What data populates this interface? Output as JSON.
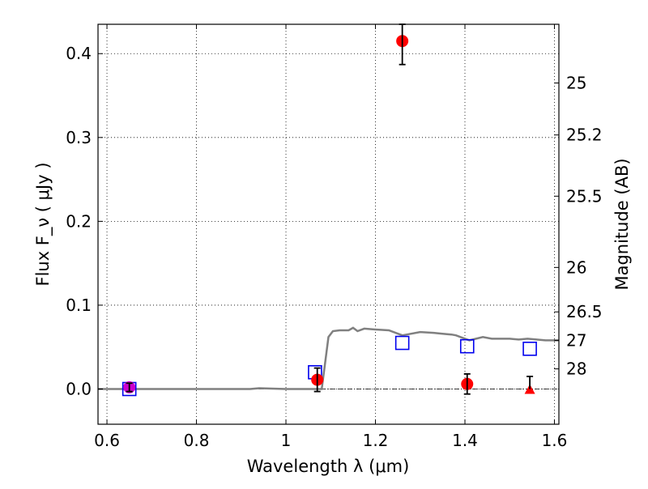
{
  "chart_data": {
    "type": "scatter",
    "title": "",
    "xlabel": "Wavelength  λ (μm)",
    "ylabel": "Flux  F_ν  ( μJy )",
    "ylabel_right": "Magnitude (AB)",
    "xlim": [
      0.58,
      1.61
    ],
    "ylim": [
      -0.042,
      0.435
    ],
    "grid": true,
    "x_ticks": [
      {
        "value": 0.6,
        "label": "0.6"
      },
      {
        "value": 0.8,
        "label": "0.8"
      },
      {
        "value": 1.0,
        "label": "1"
      },
      {
        "value": 1.2,
        "label": "1.2"
      },
      {
        "value": 1.4,
        "label": "1.4"
      },
      {
        "value": 1.6,
        "label": "1.6"
      }
    ],
    "y_ticks": [
      {
        "value": 0.0,
        "label": "0.0"
      },
      {
        "value": 0.1,
        "label": "0.1"
      },
      {
        "value": 0.2,
        "label": "0.2"
      },
      {
        "value": 0.3,
        "label": "0.3"
      },
      {
        "value": 0.4,
        "label": "0.4"
      }
    ],
    "right_ticks": [
      {
        "flux": 0.365,
        "label": "25"
      },
      {
        "flux": 0.303,
        "label": "25.2"
      },
      {
        "flux": 0.23,
        "label": "25.5"
      },
      {
        "flux": 0.145,
        "label": "26"
      },
      {
        "flux": 0.092,
        "label": "26.5"
      },
      {
        "flux": 0.058,
        "label": "27"
      },
      {
        "flux": 0.024,
        "label": "28"
      }
    ],
    "series": [
      {
        "kind": "model",
        "color": "#808080",
        "x": [
          0.58,
          0.6,
          0.7,
          0.8,
          0.9,
          0.92,
          0.94,
          0.97,
          1.0,
          1.04,
          1.08,
          1.095,
          1.105,
          1.12,
          1.14,
          1.15,
          1.16,
          1.175,
          1.2,
          1.23,
          1.26,
          1.28,
          1.3,
          1.33,
          1.35,
          1.37,
          1.38,
          1.39,
          1.41,
          1.44,
          1.46,
          1.48,
          1.5,
          1.52,
          1.54,
          1.56,
          1.58,
          1.6,
          1.61
        ],
        "y": [
          0.0,
          0.0,
          0.0,
          0.0,
          0.0,
          0.0,
          0.001,
          0.0005,
          0.0,
          0.0,
          0.0,
          0.062,
          0.069,
          0.07,
          0.07,
          0.073,
          0.069,
          0.072,
          0.071,
          0.07,
          0.064,
          0.066,
          0.068,
          0.067,
          0.066,
          0.065,
          0.064,
          0.062,
          0.058,
          0.062,
          0.06,
          0.06,
          0.06,
          0.059,
          0.06,
          0.059,
          0.058,
          0.058,
          0.058
        ]
      },
      {
        "kind": "synthetic-photometry",
        "marker": "open-square",
        "color": "#0000ee",
        "x": [
          0.65,
          1.065,
          1.26,
          1.405,
          1.545
        ],
        "y": [
          0.0,
          0.02,
          0.055,
          0.051,
          0.048
        ]
      },
      {
        "kind": "observed-photometry",
        "marker": "filled-circle",
        "color": "#ff0000",
        "x": [
          0.65,
          1.07,
          1.26,
          1.405
        ],
        "y": [
          0.002,
          0.011,
          0.415,
          0.006
        ],
        "yerr": [
          0.005,
          0.014,
          0.028,
          0.012
        ],
        "first_point_color": "#cc00cc"
      },
      {
        "kind": "upper-limit",
        "marker": "filled-triangle",
        "color": "#ff0000",
        "x": [
          1.545
        ],
        "y": [
          0.0
        ],
        "err_high": [
          0.015
        ]
      }
    ]
  }
}
